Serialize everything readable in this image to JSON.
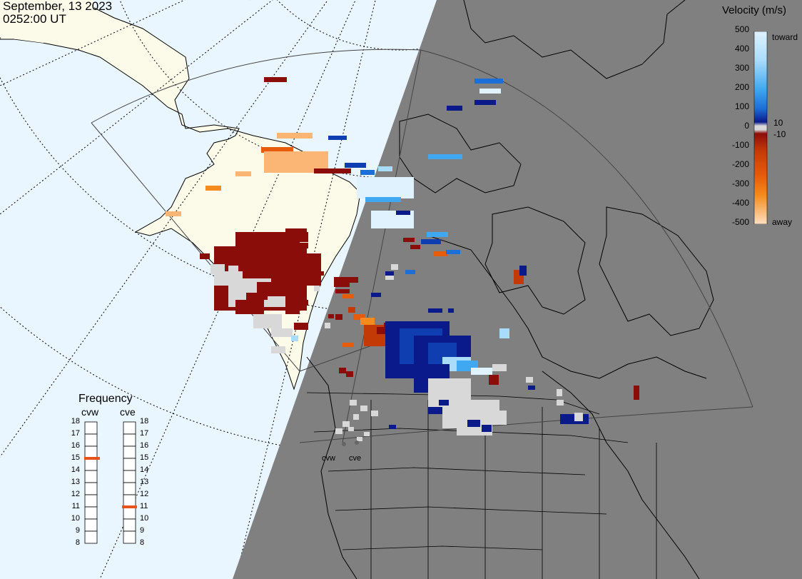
{
  "header": {
    "date": "September, 13 2023",
    "time": "0252:00 UT"
  },
  "velocity_legend": {
    "title": "Velocity (m/s)",
    "ticks": [
      "500",
      "400",
      "300",
      "200",
      "100",
      "0",
      "-100",
      "-200",
      "-300",
      "-400",
      "-500"
    ],
    "inner_ticks": [
      "10",
      "-10"
    ],
    "toward_label": "toward",
    "away_label": "away",
    "colors": [
      "#fde0c0",
      "#fbb675",
      "#f58b1c",
      "#e65c0a",
      "#c43a07",
      "#8b0d0a",
      "#d8d8d8",
      "#0a1a8a",
      "#0f3eb0",
      "#1c6fd6",
      "#3fa8f0",
      "#a9dcfb",
      "#dff2fe"
    ]
  },
  "frequency_legend": {
    "title": "Frequency",
    "radars": [
      "cvw",
      "cve"
    ],
    "ticks": [
      "18",
      "17",
      "16",
      "15",
      "14",
      "13",
      "12",
      "11",
      "10",
      "9",
      "8"
    ],
    "cvw_frequency": 15,
    "cve_frequency": 11,
    "marker_color": "#e8531c"
  },
  "map": {
    "ocean_color": "#eaf6ff",
    "land_day_color": "#fcfbe9",
    "night_color": "#808080",
    "site_labels": [
      "cvw",
      "cve"
    ]
  }
}
